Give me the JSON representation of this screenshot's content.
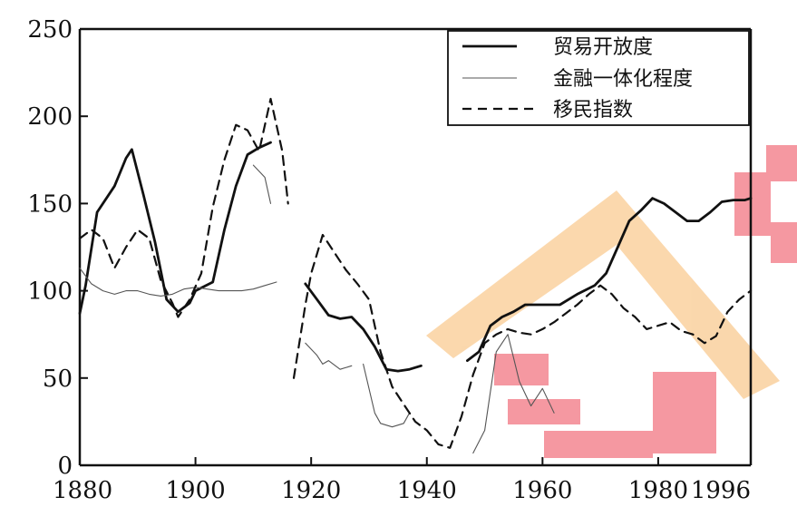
{
  "chart_data": {
    "type": "line",
    "title": "",
    "xlabel": "",
    "ylabel": "",
    "xlim": [
      1880,
      1996
    ],
    "ylim": [
      0,
      250
    ],
    "x_ticks": [
      1880,
      1900,
      1920,
      1940,
      1960,
      1980,
      1996
    ],
    "y_ticks": [
      0,
      50,
      100,
      150,
      200,
      250
    ],
    "x_tick_labels": [
      "1880",
      "1900",
      "1920",
      "1940",
      "1960",
      "1980",
      "1996"
    ],
    "y_tick_labels": [
      "0",
      "50",
      "100",
      "150",
      "200",
      "250"
    ],
    "grid": false,
    "legend_position": "top-right",
    "series": [
      {
        "name": "贸易开放度",
        "style": "solid-thick",
        "color": "#111111",
        "segments": [
          [
            [
              1880,
              87
            ],
            [
              1881,
              103
            ],
            [
              1883,
              145
            ],
            [
              1886,
              160
            ],
            [
              1888,
              176
            ],
            [
              1889,
              181
            ],
            [
              1891,
              155
            ],
            [
              1893,
              128
            ],
            [
              1895,
              95
            ],
            [
              1897,
              88
            ],
            [
              1899,
              93
            ],
            [
              1900,
              100
            ],
            [
              1903,
              105
            ],
            [
              1905,
              135
            ],
            [
              1907,
              160
            ],
            [
              1909,
              178
            ],
            [
              1911,
              182
            ],
            [
              1913,
              185
            ]
          ],
          [
            [
              1919,
              104
            ],
            [
              1921,
              95
            ],
            [
              1923,
              86
            ],
            [
              1925,
              84
            ],
            [
              1927,
              85
            ],
            [
              1929,
              78
            ],
            [
              1931,
              68
            ],
            [
              1933,
              55
            ],
            [
              1935,
              54
            ],
            [
              1937,
              55
            ],
            [
              1939,
              57
            ]
          ],
          [
            [
              1947,
              60
            ],
            [
              1949,
              65
            ],
            [
              1951,
              80
            ],
            [
              1953,
              85
            ],
            [
              1955,
              88
            ],
            [
              1957,
              92
            ],
            [
              1960,
              92
            ],
            [
              1963,
              92
            ],
            [
              1966,
              98
            ],
            [
              1969,
              103
            ],
            [
              1971,
              110
            ],
            [
              1973,
              125
            ],
            [
              1975,
              140
            ],
            [
              1977,
              146
            ],
            [
              1979,
              153
            ],
            [
              1981,
              150
            ],
            [
              1983,
              145
            ],
            [
              1985,
              140
            ],
            [
              1987,
              140
            ],
            [
              1989,
              145
            ],
            [
              1991,
              151
            ],
            [
              1993,
              152
            ],
            [
              1995,
              152
            ],
            [
              1996,
              153
            ]
          ]
        ]
      },
      {
        "name": "金融一体化程度",
        "style": "solid-thin",
        "color": "#111111",
        "segments": [
          [
            [
              1880,
              113
            ],
            [
              1882,
              104
            ],
            [
              1884,
              100
            ],
            [
              1886,
              98
            ],
            [
              1888,
              100
            ],
            [
              1890,
              100
            ],
            [
              1892,
              98
            ],
            [
              1894,
              97
            ],
            [
              1896,
              98
            ],
            [
              1898,
              101
            ],
            [
              1900,
              102
            ],
            [
              1902,
              101
            ],
            [
              1904,
              100
            ],
            [
              1906,
              100
            ],
            [
              1908,
              100
            ],
            [
              1910,
              101
            ],
            [
              1912,
              103
            ],
            [
              1914,
              105
            ]
          ],
          [
            [
              1910,
              172
            ],
            [
              1912,
              165
            ],
            [
              1913,
              150
            ]
          ],
          [
            [
              1919,
              70
            ],
            [
              1921,
              63
            ],
            [
              1922,
              58
            ],
            [
              1923,
              60
            ],
            [
              1925,
              55
            ],
            [
              1927,
              57
            ]
          ],
          [
            [
              1929,
              58
            ],
            [
              1931,
              30
            ],
            [
              1932,
              24
            ],
            [
              1934,
              22
            ],
            [
              1936,
              24
            ],
            [
              1937,
              30
            ]
          ],
          [
            [
              1948,
              7
            ],
            [
              1950,
              20
            ],
            [
              1952,
              65
            ],
            [
              1954,
              75
            ],
            [
              1956,
              48
            ],
            [
              1958,
              34
            ],
            [
              1960,
              44
            ],
            [
              1962,
              30
            ]
          ]
        ]
      },
      {
        "name": "移民指数",
        "style": "dashed",
        "color": "#111111",
        "segments": [
          [
            [
              1880,
              130
            ],
            [
              1882,
              135
            ],
            [
              1884,
              130
            ],
            [
              1886,
              113
            ],
            [
              1888,
              125
            ],
            [
              1890,
              135
            ],
            [
              1892,
              130
            ],
            [
              1894,
              106
            ],
            [
              1896,
              93
            ],
            [
              1897,
              85
            ],
            [
              1899,
              95
            ],
            [
              1901,
              110
            ],
            [
              1903,
              148
            ],
            [
              1905,
              175
            ],
            [
              1907,
              195
            ],
            [
              1909,
              192
            ],
            [
              1911,
              180
            ],
            [
              1913,
              210
            ],
            [
              1915,
              180
            ],
            [
              1916,
              150
            ]
          ],
          [
            [
              1917,
              50
            ],
            [
              1919,
              92
            ],
            [
              1920,
              110
            ],
            [
              1922,
              132
            ],
            [
              1924,
              122
            ],
            [
              1926,
              112
            ],
            [
              1928,
              104
            ],
            [
              1930,
              95
            ],
            [
              1931,
              80
            ],
            [
              1932,
              65
            ],
            [
              1933,
              55
            ],
            [
              1934,
              45
            ],
            [
              1936,
              35
            ],
            [
              1938,
              25
            ],
            [
              1940,
              20
            ],
            [
              1942,
              12
            ],
            [
              1944,
              10
            ],
            [
              1946,
              28
            ],
            [
              1948,
              52
            ],
            [
              1950,
              70
            ],
            [
              1952,
              75
            ],
            [
              1954,
              78
            ],
            [
              1956,
              76
            ],
            [
              1958,
              75
            ],
            [
              1960,
              78
            ],
            [
              1962,
              82
            ],
            [
              1964,
              87
            ],
            [
              1966,
              92
            ],
            [
              1968,
              98
            ],
            [
              1970,
              103
            ],
            [
              1972,
              98
            ],
            [
              1974,
              90
            ],
            [
              1976,
              85
            ],
            [
              1978,
              78
            ],
            [
              1980,
              80
            ],
            [
              1982,
              82
            ],
            [
              1984,
              77
            ],
            [
              1986,
              75
            ],
            [
              1988,
              70
            ],
            [
              1990,
              74
            ],
            [
              1992,
              88
            ],
            [
              1994,
              95
            ],
            [
              1996,
              100
            ]
          ]
        ]
      }
    ]
  },
  "legend": {
    "items": [
      {
        "label": "贸易开放度",
        "style": "solid-thick"
      },
      {
        "label": "金融一体化程度",
        "style": "solid-thin"
      },
      {
        "label": "移民指数",
        "style": "dashed"
      }
    ]
  },
  "watermark": {
    "colors": [
      "#f2a0a0",
      "#f7c890",
      "#e84050"
    ]
  }
}
